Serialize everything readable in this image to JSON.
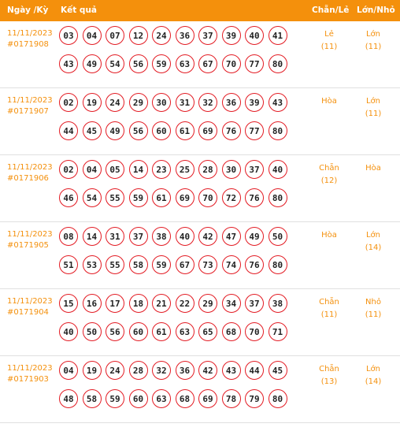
{
  "header": {
    "date_col": "Ngày /Kỳ",
    "result_col": "Kết quả",
    "chan_le_col": "Chẵn/Lẻ",
    "lon_nho_col": "Lớn/Nhỏ"
  },
  "rows": [
    {
      "date": "11/11/2023",
      "draw": "#0171908",
      "numbers": [
        "03",
        "04",
        "07",
        "12",
        "24",
        "36",
        "37",
        "39",
        "40",
        "41",
        "43",
        "49",
        "54",
        "56",
        "59",
        "63",
        "67",
        "70",
        "77",
        "80"
      ],
      "chan_le": "Lẻ",
      "chan_le_count": "(11)",
      "lon_nho": "Lớn",
      "lon_nho_count": "(11)"
    },
    {
      "date": "11/11/2023",
      "draw": "#0171907",
      "numbers": [
        "02",
        "19",
        "24",
        "29",
        "30",
        "31",
        "32",
        "36",
        "39",
        "43",
        "44",
        "45",
        "49",
        "56",
        "60",
        "61",
        "69",
        "76",
        "77",
        "80"
      ],
      "chan_le": "Hòa",
      "chan_le_count": "",
      "lon_nho": "Lớn",
      "lon_nho_count": "(11)"
    },
    {
      "date": "11/11/2023",
      "draw": "#0171906",
      "numbers": [
        "02",
        "04",
        "05",
        "14",
        "23",
        "25",
        "28",
        "30",
        "37",
        "40",
        "46",
        "54",
        "55",
        "59",
        "61",
        "69",
        "70",
        "72",
        "76",
        "80"
      ],
      "chan_le": "Chẵn",
      "chan_le_count": "(12)",
      "lon_nho": "Hòa",
      "lon_nho_count": ""
    },
    {
      "date": "11/11/2023",
      "draw": "#0171905",
      "numbers": [
        "08",
        "14",
        "31",
        "37",
        "38",
        "40",
        "42",
        "47",
        "49",
        "50",
        "51",
        "53",
        "55",
        "58",
        "59",
        "67",
        "73",
        "74",
        "76",
        "80"
      ],
      "chan_le": "Hòa",
      "chan_le_count": "",
      "lon_nho": "Lớn",
      "lon_nho_count": "(14)"
    },
    {
      "date": "11/11/2023",
      "draw": "#0171904",
      "numbers": [
        "15",
        "16",
        "17",
        "18",
        "21",
        "22",
        "29",
        "34",
        "37",
        "38",
        "40",
        "50",
        "56",
        "60",
        "61",
        "63",
        "65",
        "68",
        "70",
        "71"
      ],
      "chan_le": "Chẵn",
      "chan_le_count": "(11)",
      "lon_nho": "Nhỏ",
      "lon_nho_count": "(11)"
    },
    {
      "date": "11/11/2023",
      "draw": "#0171903",
      "numbers": [
        "04",
        "19",
        "24",
        "28",
        "32",
        "36",
        "42",
        "43",
        "44",
        "45",
        "48",
        "58",
        "59",
        "60",
        "63",
        "68",
        "69",
        "78",
        "79",
        "80"
      ],
      "chan_le": "Chẵn",
      "chan_le_count": "(13)",
      "lon_nho": "Lớn",
      "lon_nho_count": "(14)"
    }
  ],
  "colors": {
    "header_bg": "#f4900c",
    "accent_text": "#f4900c",
    "ball_border": "#e31b23"
  }
}
